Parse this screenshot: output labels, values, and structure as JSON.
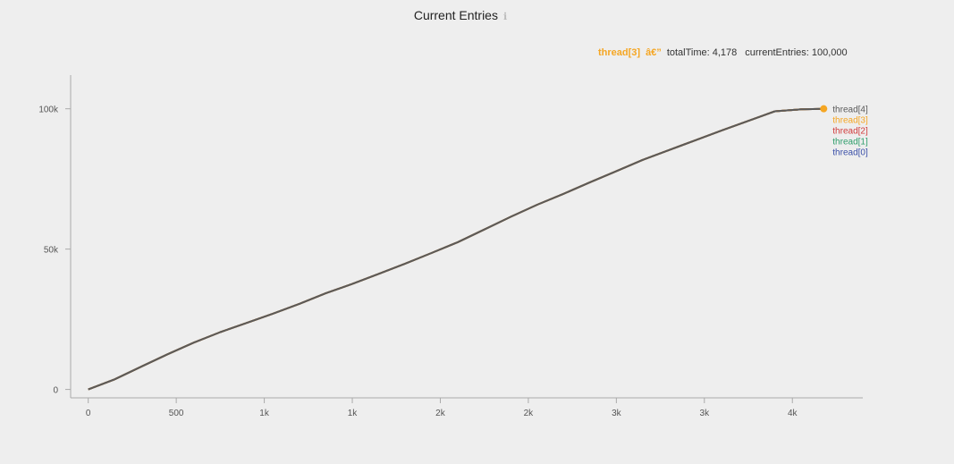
{
  "chart_data": {
    "type": "line",
    "title": "Current Entries",
    "title_icon": "info-icon",
    "xlabel": "",
    "ylabel": "",
    "xlim": [
      -100,
      4400
    ],
    "ylim": [
      -3000,
      112000
    ],
    "x_ticks": [
      {
        "value": 0,
        "label": "0"
      },
      {
        "value": 500,
        "label": "500"
      },
      {
        "value": 1000,
        "label": "1k"
      },
      {
        "value": 1500,
        "label": "1k"
      },
      {
        "value": 2000,
        "label": "2k"
      },
      {
        "value": 2500,
        "label": "2k"
      },
      {
        "value": 3000,
        "label": "3k"
      },
      {
        "value": 3500,
        "label": "3k"
      },
      {
        "value": 4000,
        "label": "4k"
      }
    ],
    "y_ticks": [
      {
        "value": 0,
        "label": "0"
      },
      {
        "value": 50000,
        "label": "50k"
      },
      {
        "value": 100000,
        "label": "100k"
      }
    ],
    "grid": false,
    "legend_position": "right",
    "x": [
      0,
      150,
      300,
      450,
      600,
      750,
      900,
      1050,
      1200,
      1350,
      1500,
      1650,
      1800,
      1950,
      2100,
      2250,
      2400,
      2550,
      2700,
      2850,
      3000,
      3150,
      3300,
      3450,
      3600,
      3750,
      3900,
      4050,
      4178
    ],
    "series": [
      {
        "name": "thread[4]",
        "color": "#5a5a5a",
        "values": [
          0,
          3600,
          8100,
          12500,
          16700,
          20400,
          23700,
          27000,
          30500,
          34300,
          37600,
          41200,
          44800,
          48600,
          52500,
          57000,
          61500,
          65800,
          69700,
          73800,
          77800,
          81800,
          85300,
          88800,
          92300,
          95700,
          99100,
          99800,
          100000
        ]
      },
      {
        "name": "thread[3]",
        "color": "#f5a623",
        "values": [
          0,
          3600,
          8100,
          12500,
          16700,
          20400,
          23700,
          27000,
          30500,
          34300,
          37600,
          41200,
          44800,
          48600,
          52500,
          57000,
          61500,
          65800,
          69700,
          73800,
          77800,
          81800,
          85300,
          88800,
          92300,
          95700,
          99100,
          99800,
          100000
        ]
      },
      {
        "name": "thread[2]",
        "color": "#d13b3b",
        "values": [
          0,
          3600,
          8100,
          12500,
          16700,
          20400,
          23700,
          27000,
          30500,
          34300,
          37600,
          41200,
          44800,
          48600,
          52500,
          57000,
          61500,
          65800,
          69700,
          73800,
          77800,
          81800,
          85300,
          88800,
          92300,
          95700,
          99100,
          99800,
          100000
        ]
      },
      {
        "name": "thread[1]",
        "color": "#2e9e6b",
        "values": [
          0,
          3600,
          8100,
          12500,
          16700,
          20400,
          23700,
          27000,
          30500,
          34300,
          37600,
          41200,
          44800,
          48600,
          52500,
          57000,
          61500,
          65800,
          69700,
          73800,
          77800,
          81800,
          85300,
          88800,
          92300,
          95700,
          99100,
          99800,
          100000
        ]
      },
      {
        "name": "thread[0]",
        "color": "#3a4fa8",
        "values": [
          0,
          3600,
          8100,
          12500,
          16700,
          20400,
          23700,
          27000,
          30500,
          34300,
          37600,
          41200,
          44800,
          48600,
          52500,
          57000,
          61500,
          65800,
          69700,
          73800,
          77800,
          81800,
          85300,
          88800,
          92300,
          95700,
          99100,
          99800,
          100000
        ]
      }
    ],
    "highlight": {
      "series": "thread[3]",
      "x": 4178,
      "y": 100000,
      "color": "#f5a623"
    }
  },
  "tooltip": {
    "series": "thread[3]",
    "separator": "â€”",
    "total_time": "totalTime: 4,178",
    "current_entries": "currentEntries: 100,000"
  }
}
